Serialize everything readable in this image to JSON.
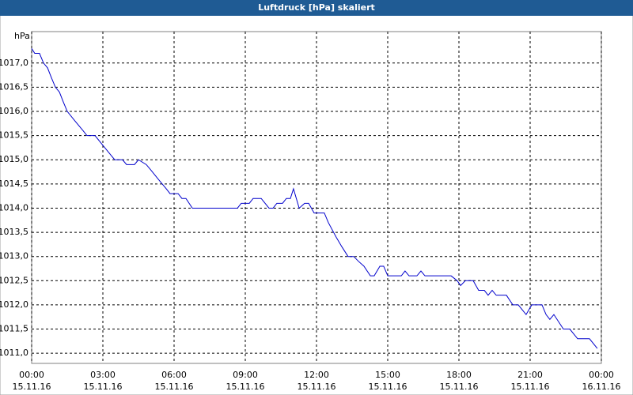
{
  "chart_data": {
    "type": "line",
    "title": "Luftdruck [hPa] skaliert",
    "y_unit": "hPa",
    "x": [
      0,
      0.13,
      0.33,
      0.5,
      0.67,
      0.83,
      1,
      1.17,
      1.33,
      1.5,
      1.83,
      2.17,
      2.33,
      2.67,
      3,
      3.33,
      3.5,
      3.83,
      4,
      4.33,
      4.5,
      4.83,
      5,
      5.33,
      5.67,
      5.83,
      6.17,
      6.33,
      6.5,
      6.77,
      8.67,
      8.83,
      9.17,
      9.33,
      9.67,
      10,
      10.17,
      10.33,
      10.57,
      10.73,
      10.9,
      11.03,
      11.27,
      11.5,
      11.67,
      11.9,
      12.33,
      12.5,
      12.83,
      13.07,
      13.33,
      13.57,
      13.77,
      14,
      14.27,
      14.43,
      14.67,
      14.83,
      15,
      15.57,
      15.73,
      15.9,
      16.23,
      16.4,
      16.57,
      17.67,
      17.93,
      18.07,
      18.27,
      18.6,
      18.83,
      19.07,
      19.23,
      19.4,
      19.57,
      20,
      20.27,
      20.5,
      20.83,
      21.07,
      21.5,
      21.67,
      21.83,
      22,
      22.4,
      22.67,
      23,
      23.5,
      23.83
    ],
    "series": [
      {
        "color": "#0000cc",
        "values": [
          1017.3,
          1017.2,
          1017.2,
          1017.0,
          1016.9,
          1016.7,
          1016.5,
          1016.4,
          1016.2,
          1016.0,
          1015.8,
          1015.6,
          1015.5,
          1015.5,
          1015.3,
          1015.1,
          1015.0,
          1015.0,
          1014.9,
          1014.9,
          1015.0,
          1014.9,
          1014.8,
          1014.6,
          1014.4,
          1014.3,
          1014.3,
          1014.2,
          1014.2,
          1014.0,
          1014.0,
          1014.1,
          1014.1,
          1014.2,
          1014.2,
          1014.0,
          1014.0,
          1014.1,
          1014.1,
          1014.2,
          1014.2,
          1014.4,
          1014.0,
          1014.1,
          1014.1,
          1013.9,
          1013.9,
          1013.7,
          1013.4,
          1013.2,
          1013.0,
          1013.0,
          1012.9,
          1012.8,
          1012.6,
          1012.6,
          1012.8,
          1012.8,
          1012.6,
          1012.6,
          1012.7,
          1012.6,
          1012.6,
          1012.7,
          1012.6,
          1012.6,
          1012.5,
          1012.4,
          1012.5,
          1012.5,
          1012.3,
          1012.3,
          1012.2,
          1012.3,
          1012.2,
          1012.2,
          1012.0,
          1012.0,
          1011.8,
          1012.0,
          1012.0,
          1011.8,
          1011.7,
          1011.8,
          1011.5,
          1011.5,
          1011.3,
          1011.3,
          1011.1
        ]
      }
    ],
    "xlim": [
      0,
      24
    ],
    "xticks": [
      {
        "value": 0,
        "label": "00:00"
      },
      {
        "value": 3,
        "label": "03:00"
      },
      {
        "value": 6,
        "label": "06:00"
      },
      {
        "value": 9,
        "label": "09:00"
      },
      {
        "value": 12,
        "label": "12:00"
      },
      {
        "value": 15,
        "label": "15:00"
      },
      {
        "value": 18,
        "label": "18:00"
      },
      {
        "value": 21,
        "label": "21:00"
      },
      {
        "value": 24,
        "label": "00:00"
      }
    ],
    "xtick_dates": [
      "15.11.16",
      "15.11.16",
      "15.11.16",
      "15.11.16",
      "15.11.16",
      "15.11.16",
      "15.11.16",
      "15.11.16",
      "16.11.16"
    ],
    "ylim": [
      1010.79,
      1017.65
    ],
    "yticks": [
      {
        "value": 1011,
        "label": "1011,0"
      },
      {
        "value": 1011.5,
        "label": "1011,5"
      },
      {
        "value": 1012,
        "label": "1012,0"
      },
      {
        "value": 1012.5,
        "label": "1012,5"
      },
      {
        "value": 1013,
        "label": "1013,0"
      },
      {
        "value": 1013.5,
        "label": "1013,5"
      },
      {
        "value": 1014,
        "label": "1014,0"
      },
      {
        "value": 1014.5,
        "label": "1014,5"
      },
      {
        "value": 1015,
        "label": "1015,0"
      },
      {
        "value": 1015.5,
        "label": "1015,5"
      },
      {
        "value": 1016,
        "label": "1016,0"
      },
      {
        "value": 1016.5,
        "label": "1016,5"
      },
      {
        "value": 1017,
        "label": "1017,0"
      }
    ],
    "grid": true
  }
}
